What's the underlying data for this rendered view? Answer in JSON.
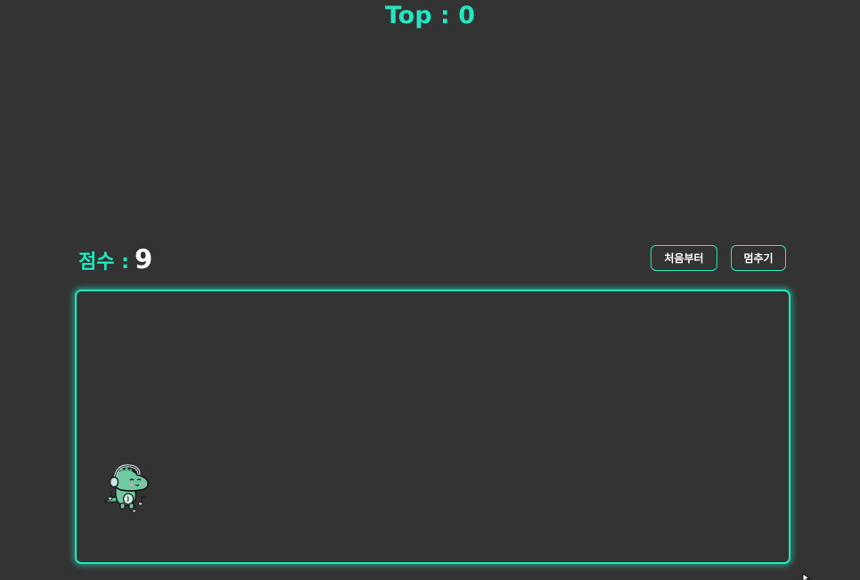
{
  "header": {
    "top_score": "Top : 0"
  },
  "score": {
    "label": "점수 :",
    "value": "9"
  },
  "controls": {
    "restart_label": "처음부터",
    "pause_label": "멈추기"
  },
  "game": {
    "player_icon": "dino-with-headphones-icon",
    "accent_color": "#1fe8c0",
    "background_color": "#333333"
  }
}
